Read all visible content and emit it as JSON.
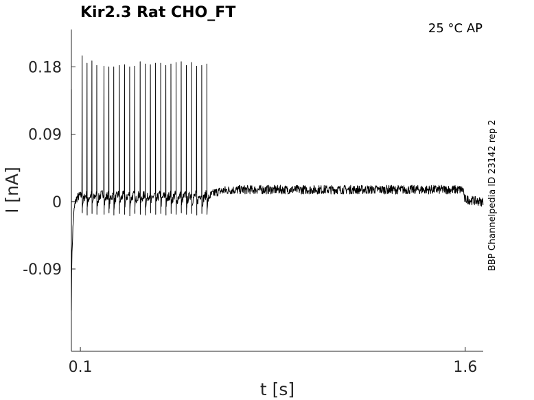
{
  "chart_data": {
    "type": "line",
    "title": "Kir2.3  Rat  CHO_FT",
    "condition_label": "25 °C  AP",
    "side_label": "BBP Channelpedia ID 23142 rep 2",
    "xlabel": "t [s]",
    "ylabel": "I [nA]",
    "xlim": [
      0.065,
      1.67
    ],
    "ylim": [
      -0.2,
      0.23
    ],
    "xticks": [
      {
        "value": 0.1,
        "label": "0.1"
      },
      {
        "value": 1.6,
        "label": "1.6"
      }
    ],
    "yticks": [
      {
        "value": -0.09,
        "label": "-0.09"
      },
      {
        "value": 0,
        "label": "0"
      },
      {
        "value": 0.09,
        "label": "0.09"
      },
      {
        "value": 0.18,
        "label": "0.18"
      }
    ],
    "grid": false,
    "series": [
      {
        "color": "#000000",
        "baseline": 0.0,
        "initial_transient": {
          "t": 0.065,
          "peak": 0.15,
          "trough": -0.145
        },
        "stim_start": 0.105,
        "stim_end": 1.595,
        "spike_times": [
          0.107,
          0.126,
          0.145,
          0.164,
          0.192,
          0.211,
          0.23,
          0.252,
          0.272,
          0.292,
          0.312,
          0.333,
          0.353,
          0.373,
          0.393,
          0.413,
          0.433,
          0.453,
          0.473,
          0.493,
          0.513,
          0.533,
          0.553,
          0.573,
          0.593
        ],
        "spike_peaks": [
          0.195,
          0.185,
          0.188,
          0.182,
          0.181,
          0.18,
          0.18,
          0.182,
          0.183,
          0.18,
          0.181,
          0.187,
          0.184,
          0.183,
          0.185,
          0.185,
          0.182,
          0.184,
          0.186,
          0.187,
          0.182,
          0.186,
          0.181,
          0.182,
          0.184
        ],
        "spike_troughs": [
          -0.015,
          -0.018,
          -0.016,
          -0.017,
          -0.017,
          -0.015,
          -0.018,
          -0.016,
          -0.017,
          -0.019,
          -0.016,
          -0.017,
          -0.018,
          -0.015,
          -0.017,
          -0.016,
          -0.018,
          -0.016,
          -0.017,
          -0.015,
          -0.017,
          -0.016,
          -0.018,
          -0.016,
          -0.017
        ]
      }
    ]
  }
}
